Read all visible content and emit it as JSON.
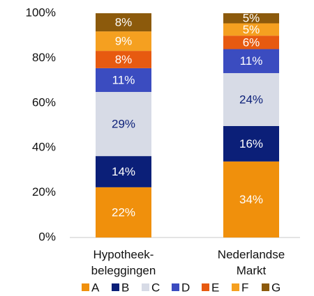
{
  "chart_data": {
    "type": "stacked_bar",
    "categories": [
      "Hypotheek-\nbeleggingen",
      "Nederlandse\nMarkt"
    ],
    "series": [
      {
        "name": "A",
        "color": "#f0900c",
        "label_color": "#ffffff",
        "values": [
          22.4,
          33.9
        ],
        "value_labels": [
          "22%",
          "34%"
        ]
      },
      {
        "name": "B",
        "color": "#0b1f78",
        "label_color": "#ffffff",
        "values": [
          13.9,
          15.8
        ],
        "value_labels": [
          "14%",
          "16%"
        ]
      },
      {
        "name": "C",
        "color": "#d7dbe6",
        "label_color": "#0b1f78",
        "values": [
          28.6,
          23.6
        ],
        "value_labels": [
          "29%",
          "24%"
        ]
      },
      {
        "name": "D",
        "color": "#3b4cc0",
        "label_color": "#ffffff",
        "values": [
          10.6,
          10.7
        ],
        "value_labels": [
          "11%",
          "11%"
        ]
      },
      {
        "name": "E",
        "color": "#e75a10",
        "label_color": "#ffffff",
        "values": [
          7.7,
          6.0
        ],
        "value_labels": [
          "8%",
          "6%"
        ]
      },
      {
        "name": "F",
        "color": "#f5a020",
        "label_color": "#ffffff",
        "values": [
          8.7,
          5.5
        ],
        "value_labels": [
          "9%",
          "5%"
        ]
      },
      {
        "name": "G",
        "color": "#8c5a0c",
        "label_color": "#ffffff",
        "values": [
          8.1,
          4.5
        ],
        "value_labels": [
          "8%",
          "5%"
        ]
      }
    ],
    "ylim": [
      0,
      100
    ],
    "yticks": [
      {
        "value": 0,
        "label": "0%"
      },
      {
        "value": 20,
        "label": "20%"
      },
      {
        "value": 40,
        "label": "40%"
      },
      {
        "value": 60,
        "label": "60%"
      },
      {
        "value": 80,
        "label": "80%"
      },
      {
        "value": 100,
        "label": "100%"
      }
    ],
    "grid": false,
    "legend": "bottom"
  }
}
